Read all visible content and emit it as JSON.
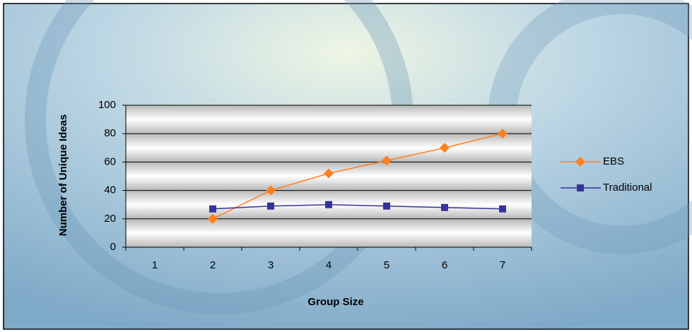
{
  "chart_data": {
    "type": "line",
    "x_label": "Group Size",
    "y_label": "Number of Unique Ideas",
    "categories": [
      "1",
      "2",
      "3",
      "4",
      "5",
      "6",
      "7"
    ],
    "series": [
      {
        "name": "EBS",
        "color": "#ff7f1e",
        "marker": "diamond",
        "values": [
          null,
          20,
          40,
          52,
          61,
          70,
          80
        ]
      },
      {
        "name": "Traditional",
        "color": "#333399",
        "marker": "square",
        "values": [
          null,
          27,
          29,
          30,
          29,
          28,
          27
        ]
      }
    ],
    "ylim": [
      0,
      100
    ],
    "yticks": [
      0,
      20,
      40,
      60,
      80,
      100
    ],
    "grid": true,
    "legend": "right"
  }
}
